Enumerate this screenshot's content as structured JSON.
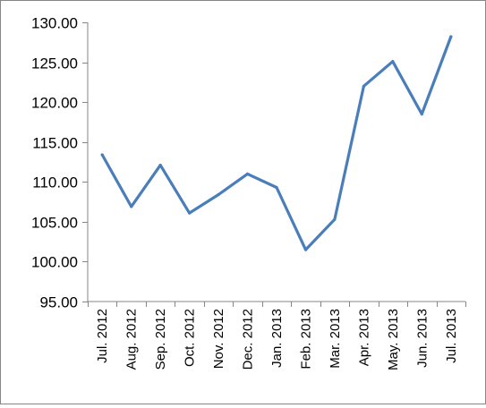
{
  "chart_data": {
    "type": "line",
    "title": "",
    "xlabel": "",
    "ylabel": "",
    "categories": [
      "Jul. 2012",
      "Aug. 2012",
      "Sep. 2012",
      "Oct. 2012",
      "Nov. 2012",
      "Dec. 2012",
      "Jan. 2013",
      "Feb. 2013",
      "Mar. 2013",
      "Apr. 2013",
      "May. 2013",
      "Jun. 2013",
      "Jul. 2013"
    ],
    "series": [
      {
        "values": [
          113.4,
          106.9,
          112.1,
          106.1,
          108.4,
          111.0,
          109.3,
          101.5,
          105.3,
          122.0,
          125.1,
          118.5,
          128.2
        ],
        "color": "#4a7ebb"
      }
    ],
    "ylim": [
      95,
      130
    ],
    "yticks": [
      "95.00",
      "100.00",
      "105.00",
      "110.00",
      "115.00",
      "120.00",
      "125.00",
      "130.00"
    ],
    "grid": false,
    "legend": "none"
  }
}
